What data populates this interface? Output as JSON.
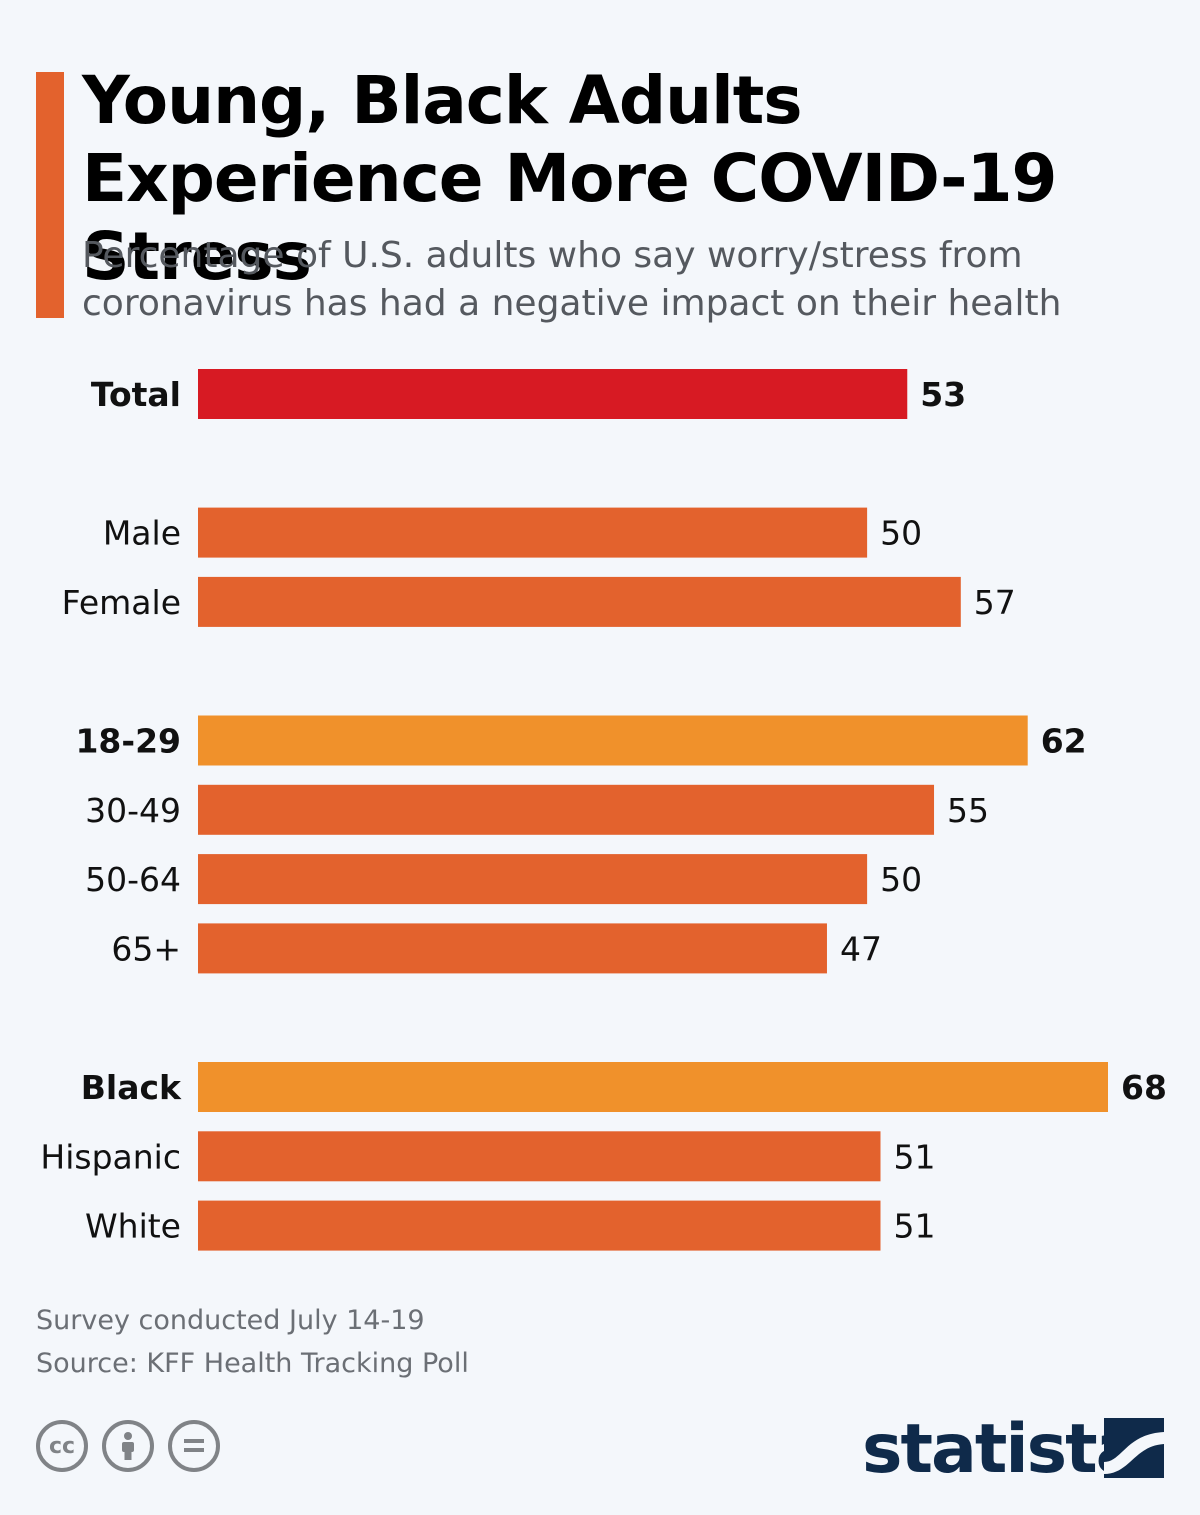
{
  "header": {
    "title": "Young, Black Adults Experience More COVID-19 Stress",
    "subtitle": "Percentage of U.S. adults who say worry/stress from coronavirus has had a negative impact on their health"
  },
  "colors": {
    "accent": "#e3622d",
    "total": "#d71a23",
    "default": "#e3622d",
    "highlight": "#f0912b"
  },
  "chart_data": {
    "type": "bar",
    "orientation": "horizontal",
    "categories": [
      "Total",
      "Male",
      "Female",
      "18-29",
      "30-49",
      "50-64",
      "65+",
      "Black",
      "Hispanic",
      "White"
    ],
    "values": [
      53,
      50,
      57,
      62,
      55,
      50,
      47,
      68,
      51,
      51
    ],
    "groups": [
      [
        "Total"
      ],
      [
        "Male",
        "Female"
      ],
      [
        "18-29",
        "30-49",
        "50-64",
        "65+"
      ],
      [
        "Black",
        "Hispanic",
        "White"
      ]
    ],
    "highlighted": [
      "Total",
      "18-29",
      "Black"
    ],
    "title": "Young, Black Adults Experience More COVID-19 Stress",
    "xlim": [
      0,
      68
    ],
    "grid": false,
    "legend": "none"
  },
  "footer": {
    "note": "Survey conducted July 14-19",
    "source": "Source: KFF Health Tracking Poll",
    "brand": "statista",
    "license_icons": [
      "cc-icon",
      "attribution-icon",
      "no-derivatives-icon"
    ]
  }
}
